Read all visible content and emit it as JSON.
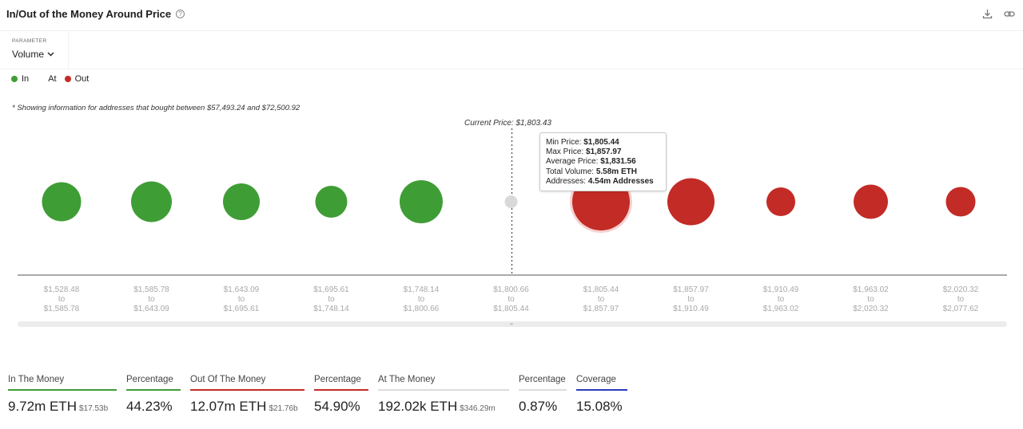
{
  "header": {
    "title": "In/Out of the Money Around Price",
    "help_icon": "question-circle-icon",
    "download_icon": "download-icon",
    "link_icon": "link-icon"
  },
  "parameter": {
    "label": "PARAMETER",
    "value": "Volume"
  },
  "legend": [
    {
      "label": "In",
      "color": "#3f9d35"
    },
    {
      "label": "At",
      "color": "#d9d9d9"
    },
    {
      "label": "Out",
      "color": "#c32b26"
    }
  ],
  "note": "* Showing information for addresses that bought between $57,493.24 and $72,500.92",
  "tooltip": {
    "min_price_label": "Min Price:",
    "min_price": "$1,805.44",
    "max_price_label": "Max Price:",
    "max_price": "$1,857.97",
    "avg_price_label": "Average Price:",
    "avg_price": "$1,831.56",
    "total_volume_label": "Total Volume:",
    "total_volume": "5.58m ETH",
    "addresses_label": "Addresses:",
    "addresses": "4.54m Addresses"
  },
  "chart_data": {
    "type": "scatter",
    "title": "In/Out of the Money Around Price",
    "current_price_label": "Current Price: $1,803.43",
    "current_price": 1803.43,
    "marker_units": "relative bubble size (volume)",
    "colors": {
      "in": "#3f9d35",
      "at": "#d9d9d9",
      "out": "#c32b26"
    },
    "bins": [
      {
        "from": "$1,528.48",
        "to_word": "to",
        "to": "$1,585.78",
        "status": "in",
        "size": 49
      },
      {
        "from": "$1,585.78",
        "to_word": "to",
        "to": "$1,643.09",
        "status": "in",
        "size": 51
      },
      {
        "from": "$1,643.09",
        "to_word": "to",
        "to": "$1,695.61",
        "status": "in",
        "size": 46
      },
      {
        "from": "$1,695.61",
        "to_word": "to",
        "to": "$1,748.14",
        "status": "in",
        "size": 40
      },
      {
        "from": "$1,748.14",
        "to_word": "to",
        "to": "$1,800.66",
        "status": "in",
        "size": 54
      },
      {
        "from": "$1,800.66",
        "to_word": "to",
        "to": "$1,805.44",
        "status": "at",
        "size": 16
      },
      {
        "from": "$1,805.44",
        "to_word": "to",
        "to": "$1,857.97",
        "status": "out",
        "size": 72,
        "highlighted": true
      },
      {
        "from": "$1,857.97",
        "to_word": "to",
        "to": "$1,910.49",
        "status": "out",
        "size": 59
      },
      {
        "from": "$1,910.49",
        "to_word": "to",
        "to": "$1,963.02",
        "status": "out",
        "size": 36
      },
      {
        "from": "$1,963.02",
        "to_word": "to",
        "to": "$2,020.32",
        "status": "out",
        "size": 43
      },
      {
        "from": "$2,020.32",
        "to_word": "to",
        "to": "$2,077.62",
        "status": "out",
        "size": 37
      }
    ]
  },
  "metrics": [
    {
      "label": "In The Money",
      "value": "9.72m ETH",
      "sub": "$17.53b",
      "accent": "#3f9d35"
    },
    {
      "label": "Percentage",
      "value": "44.23%",
      "sub": "",
      "accent": "#3f9d35"
    },
    {
      "label": "Out Of The Money",
      "value": "12.07m ETH",
      "sub": "$21.76b",
      "accent": "#c32b26"
    },
    {
      "label": "Percentage",
      "value": "54.90%",
      "sub": "",
      "accent": "#c32b26"
    },
    {
      "label": "At The Money",
      "value": "192.02k ETH",
      "sub": "$346.29m",
      "accent": "#dcdcdc"
    },
    {
      "label": "Percentage",
      "value": "0.87%",
      "sub": "",
      "accent": "#dcdcdc"
    },
    {
      "label": "Coverage",
      "value": "15.08%",
      "sub": "",
      "accent": "#2c3bbf"
    }
  ]
}
